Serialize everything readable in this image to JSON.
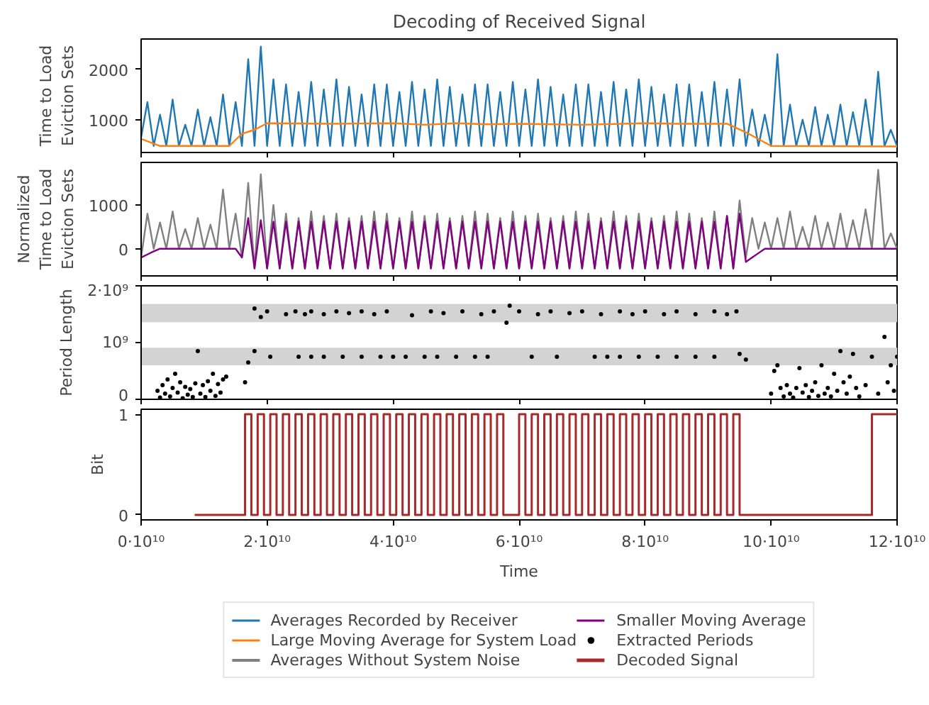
{
  "chart_data": [
    {
      "type": "line",
      "title": "Decoding of Received Signal",
      "ylabel": "Time to Load\nEviction Sets",
      "xlim": [
        0,
        120000000000.0
      ],
      "ylim": [
        350,
        2600
      ],
      "yticks": [
        1000,
        2000
      ],
      "xticks": [
        0,
        20000000000.0,
        40000000000.0,
        60000000000.0,
        80000000000.0,
        100000000000.0,
        120000000000.0
      ],
      "tick_labels": "y",
      "legend": "bottom",
      "x": [
        0,
        1000000000.0,
        2000000000.0,
        3000000000.0,
        4000000000.0,
        5000000000.0,
        6000000000.0,
        7000000000.0,
        8000000000.0,
        9000000000.0,
        10000000000.0,
        11000000000.0,
        12000000000.0,
        13000000000.0,
        14000000000.0,
        15000000000.0,
        16000000000.0,
        17000000000.0,
        18000000000.0,
        19000000000.0,
        20000000000.0,
        21000000000.0,
        22000000000.0,
        23000000000.0,
        24000000000.0,
        25000000000.0,
        26000000000.0,
        27000000000.0,
        28000000000.0,
        29000000000.0,
        30000000000.0,
        31000000000.0,
        32000000000.0,
        33000000000.0,
        34000000000.0,
        35000000000.0,
        36000000000.0,
        37000000000.0,
        38000000000.0,
        39000000000.0,
        40000000000.0,
        41000000000.0,
        42000000000.0,
        43000000000.0,
        44000000000.0,
        45000000000.0,
        46000000000.0,
        47000000000.0,
        48000000000.0,
        49000000000.0,
        50000000000.0,
        51000000000.0,
        52000000000.0,
        53000000000.0,
        54000000000.0,
        55000000000.0,
        56000000000.0,
        57000000000.0,
        58000000000.0,
        59000000000.0,
        60000000000.0,
        61000000000.0,
        62000000000.0,
        63000000000.0,
        64000000000.0,
        65000000000.0,
        66000000000.0,
        67000000000.0,
        68000000000.0,
        69000000000.0,
        70000000000.0,
        71000000000.0,
        72000000000.0,
        73000000000.0,
        74000000000.0,
        75000000000.0,
        76000000000.0,
        77000000000.0,
        78000000000.0,
        79000000000.0,
        80000000000.0,
        81000000000.0,
        82000000000.0,
        83000000000.0,
        84000000000.0,
        85000000000.0,
        86000000000.0,
        87000000000.0,
        88000000000.0,
        89000000000.0,
        90000000000.0,
        91000000000.0,
        92000000000.0,
        93000000000.0,
        94000000000.0,
        95000000000.0,
        96000000000.0,
        97000000000.0,
        98000000000.0,
        99000000000.0,
        100000000000.0,
        101000000000.0,
        102000000000.0,
        103000000000.0,
        104000000000.0,
        105000000000.0,
        106000000000.0,
        107000000000.0,
        108000000000.0,
        109000000000.0,
        110000000000.0,
        111000000000.0,
        112000000000.0,
        113000000000.0,
        114000000000.0,
        115000000000.0,
        116000000000.0,
        117000000000.0,
        118000000000.0,
        119000000000.0,
        120000000000.0
      ],
      "series": [
        {
          "name": "Averages Recorded by Receiver",
          "color": "#1f77b4",
          "values": [
            650,
            1350,
            480,
            1100,
            480,
            1400,
            480,
            900,
            480,
            1200,
            480,
            1050,
            480,
            1500,
            480,
            1350,
            480,
            2200,
            480,
            2450,
            480,
            1800,
            480,
            1700,
            480,
            1550,
            480,
            1750,
            480,
            1600,
            480,
            1800,
            480,
            1650,
            480,
            1500,
            480,
            1700,
            480,
            1700,
            480,
            1550,
            480,
            1750,
            480,
            1600,
            480,
            1800,
            480,
            1650,
            480,
            1500,
            480,
            1700,
            480,
            1700,
            480,
            1550,
            480,
            1750,
            480,
            1600,
            480,
            1800,
            480,
            1650,
            480,
            1500,
            480,
            1700,
            480,
            1700,
            480,
            1550,
            480,
            1750,
            480,
            1600,
            480,
            1800,
            480,
            1650,
            480,
            1500,
            480,
            1700,
            480,
            1700,
            480,
            1550,
            480,
            1750,
            480,
            1600,
            480,
            1800,
            480,
            1200,
            480,
            1100,
            480,
            2300,
            480,
            1300,
            480,
            1000,
            480,
            1250,
            480,
            1100,
            480,
            1300,
            480,
            1150,
            480,
            1400,
            480,
            1950,
            480,
            800,
            480
          ]
        },
        {
          "name": "Large Moving Average for System Load",
          "color": "#ff7f0e",
          "x": [
            0,
            3000000000.0,
            14000000000.0,
            16000000000.0,
            18000000000.0,
            20000000000.0,
            30000000000.0,
            40000000000.0,
            45000000000.0,
            50000000000.0,
            55000000000.0,
            60000000000.0,
            70000000000.0,
            80000000000.0,
            85000000000.0,
            93000000000.0,
            96000000000.0,
            100000000000.0,
            120000000000.0
          ],
          "values": [
            620,
            480,
            480,
            720,
            800,
            930,
            920,
            930,
            900,
            930,
            910,
            920,
            900,
            930,
            920,
            920,
            750,
            480,
            470
          ]
        }
      ]
    },
    {
      "type": "line",
      "ylabel": "Normalized\nTime to Load\nEviction Sets",
      "xlim": [
        0,
        120000000000.0
      ],
      "ylim": [
        -620,
        1970
      ],
      "yticks": [
        0,
        1000
      ],
      "xticks": [
        0,
        20000000000.0,
        40000000000.0,
        60000000000.0,
        80000000000.0,
        100000000000.0,
        120000000000.0
      ],
      "tick_labels": "y",
      "legend": "bottom",
      "x": [
        0,
        1000000000.0,
        2000000000.0,
        3000000000.0,
        4000000000.0,
        5000000000.0,
        6000000000.0,
        7000000000.0,
        8000000000.0,
        9000000000.0,
        10000000000.0,
        11000000000.0,
        12000000000.0,
        13000000000.0,
        14000000000.0,
        15000000000.0,
        16000000000.0,
        17000000000.0,
        18000000000.0,
        19000000000.0,
        20000000000.0,
        21000000000.0,
        22000000000.0,
        23000000000.0,
        24000000000.0,
        25000000000.0,
        26000000000.0,
        27000000000.0,
        28000000000.0,
        29000000000.0,
        30000000000.0,
        31000000000.0,
        32000000000.0,
        33000000000.0,
        34000000000.0,
        35000000000.0,
        36000000000.0,
        37000000000.0,
        38000000000.0,
        39000000000.0,
        40000000000.0,
        41000000000.0,
        42000000000.0,
        43000000000.0,
        44000000000.0,
        45000000000.0,
        46000000000.0,
        47000000000.0,
        48000000000.0,
        49000000000.0,
        50000000000.0,
        51000000000.0,
        52000000000.0,
        53000000000.0,
        54000000000.0,
        55000000000.0,
        56000000000.0,
        57000000000.0,
        58000000000.0,
        59000000000.0,
        60000000000.0,
        61000000000.0,
        62000000000.0,
        63000000000.0,
        64000000000.0,
        65000000000.0,
        66000000000.0,
        67000000000.0,
        68000000000.0,
        69000000000.0,
        70000000000.0,
        71000000000.0,
        72000000000.0,
        73000000000.0,
        74000000000.0,
        75000000000.0,
        76000000000.0,
        77000000000.0,
        78000000000.0,
        79000000000.0,
        80000000000.0,
        81000000000.0,
        82000000000.0,
        83000000000.0,
        84000000000.0,
        85000000000.0,
        86000000000.0,
        87000000000.0,
        88000000000.0,
        89000000000.0,
        90000000000.0,
        91000000000.0,
        92000000000.0,
        93000000000.0,
        94000000000.0,
        95000000000.0,
        96000000000.0,
        97000000000.0,
        98000000000.0,
        99000000000.0,
        100000000000.0,
        101000000000.0,
        102000000000.0,
        103000000000.0,
        104000000000.0,
        105000000000.0,
        106000000000.0,
        107000000000.0,
        108000000000.0,
        109000000000.0,
        110000000000.0,
        111000000000.0,
        112000000000.0,
        113000000000.0,
        114000000000.0,
        115000000000.0,
        116000000000.0,
        117000000000.0,
        118000000000.0,
        119000000000.0,
        120000000000.0
      ],
      "series": [
        {
          "name": "Averages Without System Noise",
          "color": "#808080",
          "values": [
            -200,
            800,
            0,
            600,
            0,
            850,
            0,
            450,
            0,
            700,
            0,
            550,
            0,
            1350,
            0,
            800,
            -200,
            1500,
            -450,
            1700,
            -450,
            1000,
            -450,
            800,
            -450,
            700,
            -450,
            850,
            -450,
            750,
            -450,
            800,
            -450,
            700,
            -450,
            750,
            -450,
            850,
            -450,
            800,
            -450,
            700,
            -450,
            850,
            -450,
            750,
            -450,
            800,
            -450,
            700,
            -450,
            750,
            -450,
            850,
            -450,
            800,
            -450,
            700,
            -450,
            850,
            -450,
            750,
            -450,
            800,
            -450,
            700,
            -450,
            750,
            -450,
            850,
            -450,
            800,
            -450,
            700,
            -450,
            850,
            -450,
            750,
            -450,
            800,
            -450,
            700,
            -450,
            750,
            -450,
            850,
            -450,
            800,
            -450,
            700,
            -450,
            850,
            -450,
            750,
            -450,
            1100,
            -200,
            700,
            0,
            600,
            0,
            700,
            0,
            850,
            0,
            500,
            0,
            750,
            0,
            600,
            0,
            800,
            0,
            650,
            0,
            900,
            0,
            1800,
            0,
            350,
            0
          ]
        },
        {
          "name": "Smaller Moving Average",
          "color": "#800080",
          "values": [
            -200,
            -130,
            -60,
            0,
            0,
            0,
            0,
            0,
            0,
            0,
            0,
            0,
            0,
            0,
            0,
            0,
            -200,
            700,
            -450,
            650,
            -450,
            620,
            -450,
            620,
            -450,
            620,
            -450,
            620,
            -450,
            620,
            -450,
            620,
            -450,
            620,
            -450,
            620,
            -450,
            620,
            -450,
            620,
            -450,
            620,
            -450,
            620,
            -450,
            620,
            -450,
            620,
            -450,
            620,
            -450,
            620,
            -450,
            620,
            -450,
            620,
            -450,
            620,
            -450,
            620,
            -450,
            620,
            -450,
            620,
            -450,
            620,
            -450,
            620,
            -450,
            620,
            -450,
            620,
            -450,
            620,
            -450,
            620,
            -450,
            620,
            -450,
            620,
            -450,
            620,
            -450,
            620,
            -450,
            620,
            -450,
            620,
            -450,
            620,
            -450,
            620,
            -450,
            750,
            -450,
            800,
            -300,
            -200,
            -100,
            0,
            0,
            0,
            0,
            0,
            0,
            0,
            0,
            0,
            0,
            0,
            0,
            0,
            0,
            0,
            0,
            0,
            0,
            0,
            0,
            0,
            0
          ]
        }
      ]
    },
    {
      "type": "scatter",
      "ylabel": "Period Length",
      "xlim": [
        0,
        120000000000.0
      ],
      "ylim": [
        0,
        2000000000.0
      ],
      "yticks": [
        0,
        {
          "value": 1000000000.0,
          "label": "10⁹"
        },
        {
          "value": 2000000000.0,
          "label": "2·10⁹"
        }
      ],
      "xticks": [
        0,
        20000000000.0,
        40000000000.0,
        60000000000.0,
        80000000000.0,
        100000000000.0,
        120000000000.0
      ],
      "tick_labels": "y",
      "legend": "bottom",
      "marker": "circle",
      "bands": [
        {
          "axis": "y",
          "from": 1360000000.0,
          "to": 1680000000.0,
          "color": "#d3d3d3"
        },
        {
          "axis": "y",
          "from": 600000000.0,
          "to": 910000000.0,
          "color": "#d3d3d3"
        }
      ],
      "series": [
        {
          "name": "Extracted Periods",
          "color": "#000000",
          "x": [
            2600000000.0,
            3000000000.0,
            3400000000.0,
            3800000000.0,
            4200000000.0,
            4600000000.0,
            5000000000.0,
            5400000000.0,
            5800000000.0,
            6200000000.0,
            6600000000.0,
            7000000000.0,
            7400000000.0,
            7800000000.0,
            8200000000.0,
            8600000000.0,
            9000000000.0,
            9400000000.0,
            9800000000.0,
            10200000000.0,
            10600000000.0,
            11000000000.0,
            11400000000.0,
            11800000000.0,
            12200000000.0,
            12600000000.0,
            13000000000.0,
            13500000000.0,
            16500000000.0,
            18000000000.0,
            19000000000.0,
            20000000000.0,
            23000000000.0,
            24500000000.0,
            26000000000.0,
            27000000000.0,
            29000000000.0,
            31000000000.0,
            33000000000.0,
            35000000000.0,
            37000000000.0,
            39000000000.0,
            43000000000.0,
            46000000000.0,
            48000000000.0,
            51000000000.0,
            54000000000.0,
            56000000000.0,
            58000000000.0,
            58500000000.0,
            60000000000.0,
            63000000000.0,
            65000000000.0,
            68000000000.0,
            70000000000.0,
            73000000000.0,
            76000000000.0,
            78000000000.0,
            80000000000.0,
            83000000000.0,
            85000000000.0,
            88000000000.0,
            91000000000.0,
            93000000000.0,
            94500000000.0,
            17000000000.0,
            18000000000.0,
            20500000000.0,
            25000000000.0,
            27000000000.0,
            29000000000.0,
            32000000000.0,
            35000000000.0,
            38000000000.0,
            40000000000.0,
            42000000000.0,
            45000000000.0,
            47000000000.0,
            50000000000.0,
            53000000000.0,
            55000000000.0,
            62000000000.0,
            66000000000.0,
            72000000000.0,
            74000000000.0,
            76000000000.0,
            79000000000.0,
            82000000000.0,
            85000000000.0,
            88000000000.0,
            91000000000.0,
            95000000000.0,
            96000000000.0,
            100000000000.0,
            100500000000.0,
            101000000000.0,
            101500000000.0,
            102000000000.0,
            102500000000.0,
            103000000000.0,
            103500000000.0,
            104000000000.0,
            104500000000.0,
            105000000000.0,
            105500000000.0,
            106000000000.0,
            106500000000.0,
            107000000000.0,
            107500000000.0,
            108000000000.0,
            108500000000.0,
            109000000000.0,
            109500000000.0,
            110000000000.0,
            110500000000.0,
            111000000000.0,
            111500000000.0,
            112000000000.0,
            112500000000.0,
            113000000000.0,
            113500000000.0,
            114000000000.0,
            115000000000.0,
            116000000000.0,
            117000000000.0,
            118000000000.0,
            118500000000.0,
            119000000000.0,
            119500000000.0,
            120000000000.0
          ],
          "values": [
            150000000.0,
            30000000.0,
            250000000.0,
            100000000.0,
            350000000.0,
            50000000.0,
            200000000.0,
            450000000.0,
            120000000.0,
            300000000.0,
            20000000.0,
            220000000.0,
            80000000.0,
            180000000.0,
            40000000.0,
            280000000.0,
            850000000.0,
            100000000.0,
            250000000.0,
            40000000.0,
            320000000.0,
            150000000.0,
            450000000.0,
            60000000.0,
            270000000.0,
            120000000.0,
            350000000.0,
            400000000.0,
            300000000.0,
            1600000000.0,
            1450000000.0,
            1550000000.0,
            1500000000.0,
            1550000000.0,
            1500000000.0,
            1550000000.0,
            1500000000.0,
            1550000000.0,
            1520000000.0,
            1550000000.0,
            1500000000.0,
            1550000000.0,
            1480000000.0,
            1550000000.0,
            1520000000.0,
            1550000000.0,
            1500000000.0,
            1550000000.0,
            1350000000.0,
            1650000000.0,
            1550000000.0,
            1500000000.0,
            1550000000.0,
            1520000000.0,
            1550000000.0,
            1500000000.0,
            1550000000.0,
            1500000000.0,
            1550000000.0,
            1500000000.0,
            1550000000.0,
            1500000000.0,
            1550000000.0,
            1500000000.0,
            1550000000.0,
            650000000.0,
            850000000.0,
            750000000.0,
            750000000.0,
            750000000.0,
            750000000.0,
            750000000.0,
            750000000.0,
            750000000.0,
            750000000.0,
            750000000.0,
            750000000.0,
            750000000.0,
            750000000.0,
            750000000.0,
            750000000.0,
            750000000.0,
            750000000.0,
            750000000.0,
            750000000.0,
            750000000.0,
            750000000.0,
            750000000.0,
            750000000.0,
            750000000.0,
            750000000.0,
            800000000.0,
            700000000.0,
            100000000.0,
            500000000.0,
            600000000.0,
            200000000.0,
            50000000.0,
            250000000.0,
            100000000.0,
            30000000.0,
            200000000.0,
            550000000.0,
            120000000.0,
            250000000.0,
            40000000.0,
            150000000.0,
            300000000.0,
            60000000.0,
            600000000.0,
            100000000.0,
            200000000.0,
            50000000.0,
            450000000.0,
            150000000.0,
            850000000.0,
            300000000.0,
            100000000.0,
            400000000.0,
            800000000.0,
            200000000.0,
            50000000.0,
            250000000.0,
            750000000.0,
            100000000.0,
            1100000000.0,
            300000000.0,
            600000000.0,
            150000000.0,
            750000000.0
          ]
        }
      ]
    },
    {
      "type": "step",
      "ylabel": "Bit",
      "xlabel": "Time",
      "xlim": [
        0,
        120000000000.0
      ],
      "ylim": [
        -0.05,
        1.05
      ],
      "yticks": [
        0,
        1
      ],
      "xticks": [
        {
          "value": 0,
          "label": "0·10¹⁰"
        },
        {
          "value": 20000000000.0,
          "label": "2·10¹⁰"
        },
        {
          "value": 40000000000.0,
          "label": "4·10¹⁰"
        },
        {
          "value": 60000000000.0,
          "label": "6·10¹⁰"
        },
        {
          "value": 80000000000.0,
          "label": "8·10¹⁰"
        },
        {
          "value": 100000000000.0,
          "label": "10·10¹⁰"
        },
        {
          "value": 120000000000.0,
          "label": "12·10¹⁰"
        }
      ],
      "legend": "bottom",
      "series": [
        {
          "name": "Decoded Signal",
          "color": "#a52a2a",
          "x": [
            8500000000.0,
            16500000000.0,
            17500000000.0,
            18500000000.0,
            19500000000.0,
            20500000000.0,
            21500000000.0,
            22500000000.0,
            23500000000.0,
            24500000000.0,
            25500000000.0,
            26500000000.0,
            27500000000.0,
            28500000000.0,
            29500000000.0,
            30500000000.0,
            31500000000.0,
            32500000000.0,
            33500000000.0,
            34500000000.0,
            35500000000.0,
            36500000000.0,
            37500000000.0,
            38500000000.0,
            39500000000.0,
            40500000000.0,
            41500000000.0,
            42500000000.0,
            43500000000.0,
            44500000000.0,
            45500000000.0,
            46500000000.0,
            47500000000.0,
            48500000000.0,
            49500000000.0,
            50500000000.0,
            51500000000.0,
            52500000000.0,
            53500000000.0,
            54500000000.0,
            55500000000.0,
            56500000000.0,
            57500000000.0,
            60000000000.0,
            61000000000.0,
            62000000000.0,
            63000000000.0,
            64000000000.0,
            65000000000.0,
            66000000000.0,
            67000000000.0,
            68000000000.0,
            69000000000.0,
            70000000000.0,
            71000000000.0,
            72000000000.0,
            73000000000.0,
            74000000000.0,
            75000000000.0,
            76000000000.0,
            77000000000.0,
            78000000000.0,
            79000000000.0,
            80000000000.0,
            81000000000.0,
            82000000000.0,
            83000000000.0,
            84000000000.0,
            85000000000.0,
            86000000000.0,
            87000000000.0,
            88000000000.0,
            89000000000.0,
            90000000000.0,
            91000000000.0,
            92000000000.0,
            93000000000.0,
            94000000000.0,
            95000000000.0,
            96500000000.0,
            116000000000.0,
            120000000000.0
          ],
          "values": [
            0,
            1,
            0,
            1,
            0,
            1,
            0,
            1,
            0,
            1,
            0,
            1,
            0,
            1,
            0,
            1,
            0,
            1,
            0,
            1,
            0,
            1,
            0,
            1,
            0,
            1,
            0,
            1,
            0,
            1,
            0,
            1,
            0,
            1,
            0,
            1,
            0,
            1,
            0,
            1,
            0,
            1,
            0,
            1,
            0,
            1,
            0,
            1,
            0,
            1,
            0,
            1,
            0,
            1,
            0,
            1,
            0,
            1,
            0,
            1,
            0,
            1,
            0,
            1,
            0,
            1,
            0,
            1,
            0,
            1,
            0,
            1,
            0,
            1,
            0,
            1,
            0,
            1,
            0,
            0,
            1,
            1
          ]
        }
      ]
    }
  ]
}
